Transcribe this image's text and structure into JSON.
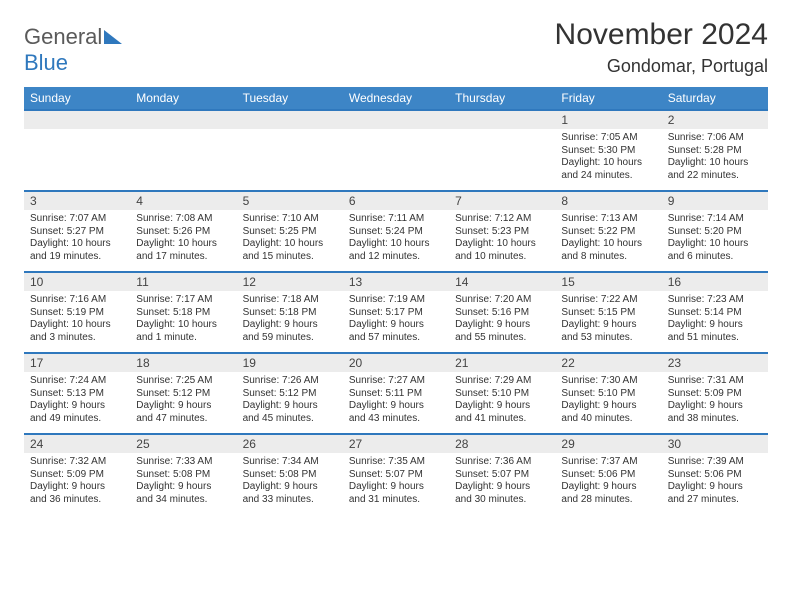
{
  "logo": {
    "line1": "General",
    "line2": "Blue"
  },
  "header": {
    "title": "November 2024",
    "location": "Gondomar, Portugal"
  },
  "colors": {
    "accent": "#3d85c6",
    "rule": "#2f78bd",
    "shade": "#ececec"
  },
  "dayNames": [
    "Sunday",
    "Monday",
    "Tuesday",
    "Wednesday",
    "Thursday",
    "Friday",
    "Saturday"
  ],
  "weeks": [
    [
      null,
      null,
      null,
      null,
      null,
      {
        "n": "1",
        "sr": "Sunrise: 7:05 AM",
        "ss": "Sunset: 5:30 PM",
        "d1": "Daylight: 10 hours",
        "d2": "and 24 minutes."
      },
      {
        "n": "2",
        "sr": "Sunrise: 7:06 AM",
        "ss": "Sunset: 5:28 PM",
        "d1": "Daylight: 10 hours",
        "d2": "and 22 minutes."
      }
    ],
    [
      {
        "n": "3",
        "sr": "Sunrise: 7:07 AM",
        "ss": "Sunset: 5:27 PM",
        "d1": "Daylight: 10 hours",
        "d2": "and 19 minutes."
      },
      {
        "n": "4",
        "sr": "Sunrise: 7:08 AM",
        "ss": "Sunset: 5:26 PM",
        "d1": "Daylight: 10 hours",
        "d2": "and 17 minutes."
      },
      {
        "n": "5",
        "sr": "Sunrise: 7:10 AM",
        "ss": "Sunset: 5:25 PM",
        "d1": "Daylight: 10 hours",
        "d2": "and 15 minutes."
      },
      {
        "n": "6",
        "sr": "Sunrise: 7:11 AM",
        "ss": "Sunset: 5:24 PM",
        "d1": "Daylight: 10 hours",
        "d2": "and 12 minutes."
      },
      {
        "n": "7",
        "sr": "Sunrise: 7:12 AM",
        "ss": "Sunset: 5:23 PM",
        "d1": "Daylight: 10 hours",
        "d2": "and 10 minutes."
      },
      {
        "n": "8",
        "sr": "Sunrise: 7:13 AM",
        "ss": "Sunset: 5:22 PM",
        "d1": "Daylight: 10 hours",
        "d2": "and 8 minutes."
      },
      {
        "n": "9",
        "sr": "Sunrise: 7:14 AM",
        "ss": "Sunset: 5:20 PM",
        "d1": "Daylight: 10 hours",
        "d2": "and 6 minutes."
      }
    ],
    [
      {
        "n": "10",
        "sr": "Sunrise: 7:16 AM",
        "ss": "Sunset: 5:19 PM",
        "d1": "Daylight: 10 hours",
        "d2": "and 3 minutes."
      },
      {
        "n": "11",
        "sr": "Sunrise: 7:17 AM",
        "ss": "Sunset: 5:18 PM",
        "d1": "Daylight: 10 hours",
        "d2": "and 1 minute."
      },
      {
        "n": "12",
        "sr": "Sunrise: 7:18 AM",
        "ss": "Sunset: 5:18 PM",
        "d1": "Daylight: 9 hours",
        "d2": "and 59 minutes."
      },
      {
        "n": "13",
        "sr": "Sunrise: 7:19 AM",
        "ss": "Sunset: 5:17 PM",
        "d1": "Daylight: 9 hours",
        "d2": "and 57 minutes."
      },
      {
        "n": "14",
        "sr": "Sunrise: 7:20 AM",
        "ss": "Sunset: 5:16 PM",
        "d1": "Daylight: 9 hours",
        "d2": "and 55 minutes."
      },
      {
        "n": "15",
        "sr": "Sunrise: 7:22 AM",
        "ss": "Sunset: 5:15 PM",
        "d1": "Daylight: 9 hours",
        "d2": "and 53 minutes."
      },
      {
        "n": "16",
        "sr": "Sunrise: 7:23 AM",
        "ss": "Sunset: 5:14 PM",
        "d1": "Daylight: 9 hours",
        "d2": "and 51 minutes."
      }
    ],
    [
      {
        "n": "17",
        "sr": "Sunrise: 7:24 AM",
        "ss": "Sunset: 5:13 PM",
        "d1": "Daylight: 9 hours",
        "d2": "and 49 minutes."
      },
      {
        "n": "18",
        "sr": "Sunrise: 7:25 AM",
        "ss": "Sunset: 5:12 PM",
        "d1": "Daylight: 9 hours",
        "d2": "and 47 minutes."
      },
      {
        "n": "19",
        "sr": "Sunrise: 7:26 AM",
        "ss": "Sunset: 5:12 PM",
        "d1": "Daylight: 9 hours",
        "d2": "and 45 minutes."
      },
      {
        "n": "20",
        "sr": "Sunrise: 7:27 AM",
        "ss": "Sunset: 5:11 PM",
        "d1": "Daylight: 9 hours",
        "d2": "and 43 minutes."
      },
      {
        "n": "21",
        "sr": "Sunrise: 7:29 AM",
        "ss": "Sunset: 5:10 PM",
        "d1": "Daylight: 9 hours",
        "d2": "and 41 minutes."
      },
      {
        "n": "22",
        "sr": "Sunrise: 7:30 AM",
        "ss": "Sunset: 5:10 PM",
        "d1": "Daylight: 9 hours",
        "d2": "and 40 minutes."
      },
      {
        "n": "23",
        "sr": "Sunrise: 7:31 AM",
        "ss": "Sunset: 5:09 PM",
        "d1": "Daylight: 9 hours",
        "d2": "and 38 minutes."
      }
    ],
    [
      {
        "n": "24",
        "sr": "Sunrise: 7:32 AM",
        "ss": "Sunset: 5:09 PM",
        "d1": "Daylight: 9 hours",
        "d2": "and 36 minutes."
      },
      {
        "n": "25",
        "sr": "Sunrise: 7:33 AM",
        "ss": "Sunset: 5:08 PM",
        "d1": "Daylight: 9 hours",
        "d2": "and 34 minutes."
      },
      {
        "n": "26",
        "sr": "Sunrise: 7:34 AM",
        "ss": "Sunset: 5:08 PM",
        "d1": "Daylight: 9 hours",
        "d2": "and 33 minutes."
      },
      {
        "n": "27",
        "sr": "Sunrise: 7:35 AM",
        "ss": "Sunset: 5:07 PM",
        "d1": "Daylight: 9 hours",
        "d2": "and 31 minutes."
      },
      {
        "n": "28",
        "sr": "Sunrise: 7:36 AM",
        "ss": "Sunset: 5:07 PM",
        "d1": "Daylight: 9 hours",
        "d2": "and 30 minutes."
      },
      {
        "n": "29",
        "sr": "Sunrise: 7:37 AM",
        "ss": "Sunset: 5:06 PM",
        "d1": "Daylight: 9 hours",
        "d2": "and 28 minutes."
      },
      {
        "n": "30",
        "sr": "Sunrise: 7:39 AM",
        "ss": "Sunset: 5:06 PM",
        "d1": "Daylight: 9 hours",
        "d2": "and 27 minutes."
      }
    ]
  ]
}
